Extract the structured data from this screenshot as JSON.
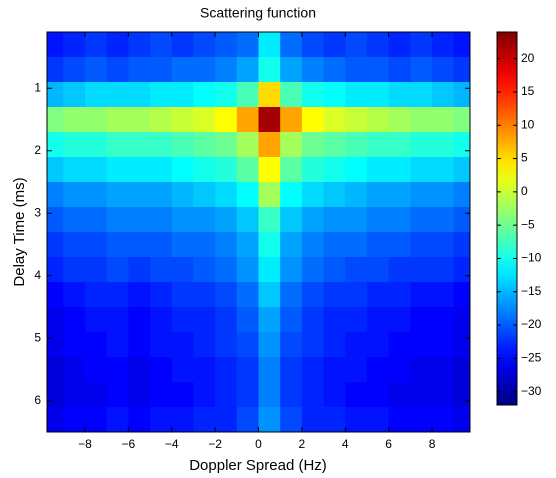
{
  "chart_data": {
    "type": "heatmap",
    "title": "Scattering function",
    "x_label": "Doppler Spread (Hz)",
    "y_label": "Delay Time (ms)",
    "xlim": [
      -9.75,
      9.75
    ],
    "ylim": [
      0.1,
      6.5
    ],
    "clim": [
      -32,
      24
    ],
    "xticks": [
      {
        "value": -8,
        "label": "−8"
      },
      {
        "value": -6,
        "label": "−6"
      },
      {
        "value": -4,
        "label": "−4"
      },
      {
        "value": -2,
        "label": "−2"
      },
      0,
      2,
      4,
      6,
      8
    ],
    "yticks": [
      1,
      2,
      3,
      4,
      5,
      6
    ],
    "cticks": [
      {
        "value": -30,
        "label": "−30"
      },
      {
        "value": -25,
        "label": "−25"
      },
      {
        "value": -20,
        "label": "−20"
      },
      {
        "value": -15,
        "label": "−15"
      },
      {
        "value": -10,
        "label": "−10"
      },
      {
        "value": -5,
        "label": "−5"
      },
      0,
      5,
      10,
      15,
      20
    ],
    "colormap": "jet",
    "x": [
      -9.5,
      -8.5,
      -7.5,
      -6.5,
      -5.5,
      -4.5,
      -3.5,
      -2.5,
      -1.5,
      -0.5,
      0.5,
      1.5,
      2.5,
      3.5,
      4.5,
      5.5,
      6.5,
      7.5,
      8.5,
      9.5
    ],
    "y": [
      0.3,
      0.7,
      1.1,
      1.5,
      1.9,
      2.3,
      2.7,
      3.1,
      3.5,
      3.9,
      4.3,
      4.7,
      5.1,
      5.5,
      5.9,
      6.3
    ],
    "values": [
      [
        -24,
        -23,
        -22,
        -23,
        -22,
        -21,
        -22,
        -21,
        -20,
        -19,
        -12,
        -19,
        -21,
        -22,
        -21,
        -22,
        -23,
        -22,
        -23,
        -24
      ],
      [
        -22,
        -21,
        -20,
        -21,
        -20,
        -20,
        -19,
        -19,
        -18,
        -16,
        -10,
        -16,
        -18,
        -19,
        -20,
        -20,
        -21,
        -20,
        -21,
        -22
      ],
      [
        -15,
        -14,
        -13,
        -13,
        -13,
        -12,
        -12,
        -11,
        -10,
        -7,
        5,
        -7,
        -10,
        -11,
        -12,
        -12,
        -13,
        -13,
        -14,
        -15
      ],
      [
        -4,
        -3,
        -3,
        -2,
        -2,
        -1,
        0,
        1,
        3,
        8,
        22,
        8,
        3,
        1,
        0,
        -1,
        -2,
        -3,
        -3,
        -4
      ],
      [
        -10,
        -9,
        -9,
        -8,
        -8,
        -8,
        -7,
        -6,
        -5,
        -2,
        8,
        -2,
        -5,
        -6,
        -7,
        -8,
        -8,
        -9,
        -9,
        -10
      ],
      [
        -14,
        -13,
        -13,
        -12,
        -12,
        -12,
        -11,
        -10,
        -9,
        -6,
        3,
        -6,
        -9,
        -10,
        -11,
        -12,
        -12,
        -13,
        -13,
        -14
      ],
      [
        -18,
        -17,
        -17,
        -16,
        -16,
        -16,
        -15,
        -14,
        -13,
        -11,
        -2,
        -11,
        -13,
        -14,
        -15,
        -16,
        -16,
        -17,
        -17,
        -18
      ],
      [
        -20,
        -19,
        -19,
        -18,
        -18,
        -18,
        -17,
        -17,
        -16,
        -14,
        -8,
        -14,
        -16,
        -17,
        -17,
        -18,
        -18,
        -19,
        -19,
        -20
      ],
      [
        -22,
        -21,
        -21,
        -20,
        -20,
        -20,
        -19,
        -19,
        -18,
        -16,
        -10,
        -16,
        -18,
        -19,
        -19,
        -20,
        -20,
        -21,
        -21,
        -22
      ],
      [
        -23,
        -22,
        -22,
        -21,
        -22,
        -21,
        -21,
        -20,
        -19,
        -17,
        -12,
        -17,
        -19,
        -20,
        -21,
        -21,
        -22,
        -22,
        -22,
        -23
      ],
      [
        -25,
        -24,
        -23,
        -23,
        -24,
        -23,
        -22,
        -22,
        -21,
        -19,
        -14,
        -19,
        -21,
        -22,
        -22,
        -23,
        -23,
        -24,
        -24,
        -25
      ],
      [
        -26,
        -25,
        -24,
        -24,
        -25,
        -24,
        -23,
        -23,
        -22,
        -20,
        -16,
        -20,
        -22,
        -23,
        -23,
        -24,
        -24,
        -25,
        -25,
        -26
      ],
      [
        -26,
        -25,
        -25,
        -24,
        -25,
        -24,
        -24,
        -23,
        -22,
        -21,
        -17,
        -21,
        -22,
        -23,
        -24,
        -24,
        -25,
        -25,
        -25,
        -26
      ],
      [
        -27,
        -26,
        -25,
        -25,
        -26,
        -25,
        -24,
        -24,
        -23,
        -22,
        -18,
        -22,
        -23,
        -24,
        -24,
        -25,
        -25,
        -26,
        -26,
        -27
      ],
      [
        -27,
        -26,
        -26,
        -25,
        -26,
        -25,
        -25,
        -24,
        -23,
        -22,
        -18,
        -22,
        -23,
        -24,
        -25,
        -25,
        -26,
        -26,
        -26,
        -27
      ],
      [
        -26,
        -25,
        -25,
        -24,
        -25,
        -24,
        -24,
        -23,
        -23,
        -21,
        -17,
        -21,
        -23,
        -23,
        -24,
        -24,
        -25,
        -25,
        -25,
        -26
      ]
    ]
  }
}
